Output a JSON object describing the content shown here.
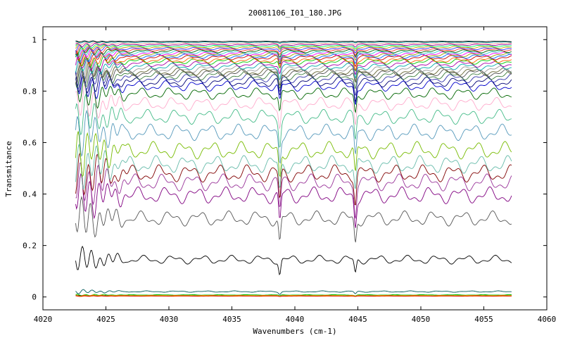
{
  "chart_data": {
    "type": "line",
    "title": "20081106_I01_180.JPG",
    "xlabel": "Wavenumbers (cm-1)",
    "ylabel": "Transmitance",
    "xlim": [
      4020,
      4060
    ],
    "ylim": [
      -0.05,
      1.05
    ],
    "x_ticks": [
      "4020",
      "4025",
      "4030",
      "4035",
      "4040",
      "4045",
      "4050",
      "4055",
      "4060"
    ],
    "y_ticks": [
      "0",
      "0.2",
      "0.4",
      "0.6",
      "0.8",
      "1"
    ],
    "grid": false,
    "legend": "none",
    "x_data_range": [
      4022.6,
      4057.2
    ],
    "absorption_lines": [
      4038.8,
      4044.8
    ],
    "series": [
      {
        "color": "#000000",
        "level": 0.005
      },
      {
        "color": "#00bb00",
        "level": 0.008
      },
      {
        "color": "#ff8800",
        "level": 0.003
      },
      {
        "color": "#d4c400",
        "level": 0.006
      },
      {
        "color": "#dd0000",
        "level": 0.004
      },
      {
        "color": "#005a5a",
        "level": 0.021
      },
      {
        "color": "#000000",
        "level": 0.145
      },
      {
        "color": "#555555",
        "level": 0.305
      },
      {
        "color": "#800080",
        "level": 0.395
      },
      {
        "color": "#993399",
        "level": 0.445
      },
      {
        "color": "#800000",
        "level": 0.48
      },
      {
        "color": "#66bbaa",
        "level": 0.515
      },
      {
        "color": "#77bb00",
        "level": 0.57
      },
      {
        "color": "#5599bb",
        "level": 0.64
      },
      {
        "color": "#44bb88",
        "level": 0.7
      },
      {
        "color": "#ffaacc",
        "level": 0.75
      },
      {
        "color": "#006600",
        "level": 0.79
      },
      {
        "color": "#0000cc",
        "level": 0.82
      },
      {
        "color": "#000077",
        "level": 0.835
      },
      {
        "color": "#3333aa",
        "level": 0.85
      },
      {
        "color": "#3d7d3d",
        "level": 0.86
      },
      {
        "color": "#555555",
        "level": 0.87
      },
      {
        "color": "#666633",
        "level": 0.875
      },
      {
        "color": "#999999",
        "level": 0.885
      },
      {
        "color": "#00aaaa",
        "level": 0.895
      },
      {
        "color": "#aa00aa",
        "level": 0.905
      },
      {
        "color": "#00cc00",
        "level": 0.915
      },
      {
        "color": "#ff6600",
        "level": 0.92
      },
      {
        "color": "#cc0000",
        "level": 0.93
      },
      {
        "color": "#0066ff",
        "level": 0.935
      },
      {
        "color": "#999900",
        "level": 0.94
      },
      {
        "color": "#ff00ff",
        "level": 0.945
      },
      {
        "color": "#33cccc",
        "level": 0.95
      },
      {
        "color": "#006600",
        "level": 0.955
      },
      {
        "color": "#ff3333",
        "level": 0.96
      },
      {
        "color": "#3333ff",
        "level": 0.965
      },
      {
        "color": "#cc9900",
        "level": 0.97
      },
      {
        "color": "#00ff66",
        "level": 0.975
      },
      {
        "color": "#990099",
        "level": 0.98
      },
      {
        "color": "#ff9999",
        "level": 0.985
      },
      {
        "color": "#009999",
        "level": 0.99
      },
      {
        "color": "#000000",
        "level": 0.993
      }
    ]
  }
}
